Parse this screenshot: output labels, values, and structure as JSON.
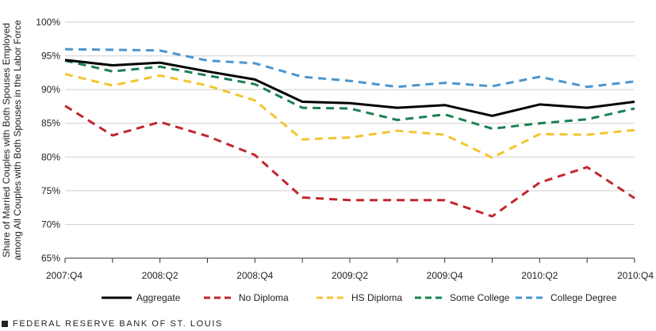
{
  "chart_data": {
    "type": "line",
    "title": "",
    "ylabel_lines": [
      "Share of Married Couples with Both Spouses Employed",
      "among All Couples with Both Spouses in the Labor Force"
    ],
    "xlabel": "",
    "y_ticks": [
      "65%",
      "70%",
      "75%",
      "80%",
      "85%",
      "90%",
      "95%",
      "100%"
    ],
    "ylim": [
      65,
      100
    ],
    "x": [
      "2007:Q4",
      "2008:Q1",
      "2008:Q2",
      "2008:Q3",
      "2008:Q4",
      "2009:Q1",
      "2009:Q2",
      "2009:Q3",
      "2009:Q4",
      "2010:Q1",
      "2010:Q2",
      "2010:Q3",
      "2010:Q4"
    ],
    "x_tick_labels": [
      {
        "index": 0,
        "label": "2007:Q4"
      },
      {
        "index": 2,
        "label": "2008:Q2"
      },
      {
        "index": 4,
        "label": "2008:Q4"
      },
      {
        "index": 6,
        "label": "2009:Q2"
      },
      {
        "index": 8,
        "label": "2009:Q4"
      },
      {
        "index": 10,
        "label": "2010:Q2"
      },
      {
        "index": 12,
        "label": "2010:Q4"
      }
    ],
    "grid": {
      "horizontal": true,
      "vertical": false
    },
    "legend_position": "bottom",
    "series": [
      {
        "name": "Aggregate",
        "color": "#000000",
        "dash": "solid",
        "values": [
          94.4,
          93.6,
          94.0,
          92.7,
          91.5,
          88.2,
          88.0,
          87.3,
          87.7,
          86.1,
          87.8,
          87.3,
          88.2
        ]
      },
      {
        "name": "No Diploma",
        "color": "#c0272d",
        "dash": "dash",
        "values": [
          87.6,
          83.2,
          85.2,
          83.1,
          80.3,
          74.0,
          73.6,
          73.6,
          73.6,
          71.2,
          76.2,
          78.5,
          73.9
        ]
      },
      {
        "name": "HS Diploma",
        "color": "#f4c430",
        "dash": "dash",
        "values": [
          92.3,
          90.6,
          92.1,
          90.6,
          88.4,
          82.6,
          82.9,
          83.9,
          83.3,
          79.9,
          83.4,
          83.3,
          84.0
        ]
      },
      {
        "name": "Some College",
        "color": "#1a8050",
        "dash": "dash",
        "values": [
          94.3,
          92.7,
          93.4,
          92.1,
          90.8,
          87.3,
          87.2,
          85.5,
          86.3,
          84.2,
          85.0,
          85.6,
          87.2
        ]
      },
      {
        "name": "College Degree",
        "color": "#4a95cc",
        "dash": "dash",
        "values": [
          96.0,
          95.9,
          95.8,
          94.3,
          93.9,
          91.9,
          91.3,
          90.4,
          91.0,
          90.5,
          91.9,
          90.4,
          91.2
        ]
      }
    ]
  },
  "footer": {
    "source": "FEDERAL RESERVE BANK OF ST. LOUIS"
  }
}
